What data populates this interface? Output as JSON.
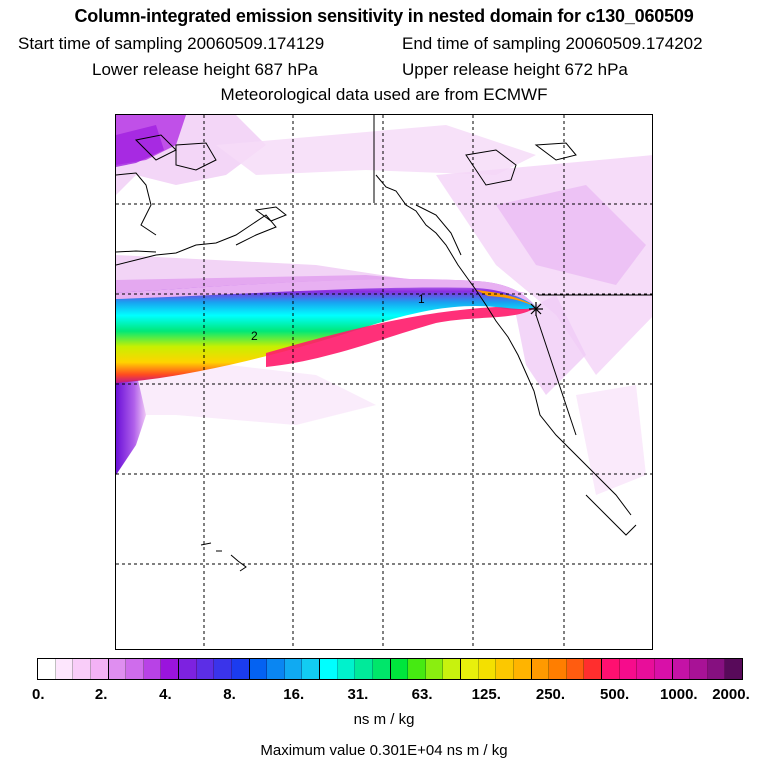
{
  "header": {
    "title": "Column-integrated emission sensitivity in nested domain for c130_060509",
    "start_time": "Start time of sampling 20060509.174129",
    "end_time": "End time of sampling 20060509.174202",
    "lower_release": "Lower release height  687 hPa",
    "upper_release": "Upper release height  672 hPa",
    "met_data": "Meteorological data used are from ECMWF"
  },
  "map": {
    "plume_labels": [
      "1",
      "2"
    ],
    "receptor_marker": "star-icon",
    "plume_colors": [
      "#f4c8f4",
      "#e080ee",
      "#00ffff",
      "#00e878",
      "#aaf000",
      "#ffd400",
      "#ff7a00",
      "#ff1060",
      "#c0168a"
    ]
  },
  "colorbar": {
    "unit": "ns m / kg",
    "tick_labels": [
      "0.",
      "2.",
      "4.",
      "8.",
      "16.",
      "31.",
      "63.",
      "125.",
      "250.",
      "500.",
      "1000.",
      "2000."
    ],
    "segment_colors": [
      "#ffffff",
      "#fde6fd",
      "#f9cdf9",
      "#f3b2f5",
      "#df8ef0",
      "#cf6cec",
      "#b842e6",
      "#9a14dd",
      "#7d22e0",
      "#5c2ee6",
      "#3a34ea",
      "#1b3cef",
      "#0462f2",
      "#0a86f2",
      "#10aaf2",
      "#12ccf2",
      "#00ffff",
      "#00f2cc",
      "#00ea9a",
      "#00e66a",
      "#00e63c",
      "#46ea12",
      "#8aee10",
      "#c8f20e",
      "#e8f00c",
      "#f4e000",
      "#fcc800",
      "#ffb400",
      "#ff9a00",
      "#ff7e00",
      "#ff5c10",
      "#ff2e2e",
      "#ff1070",
      "#f60c8c",
      "#e80e9a",
      "#d810a8",
      "#c412a6",
      "#a81296",
      "#861080",
      "#580a5a"
    ]
  },
  "footer": {
    "max_value": "Maximum value  0.301E+04 ns m / kg"
  }
}
